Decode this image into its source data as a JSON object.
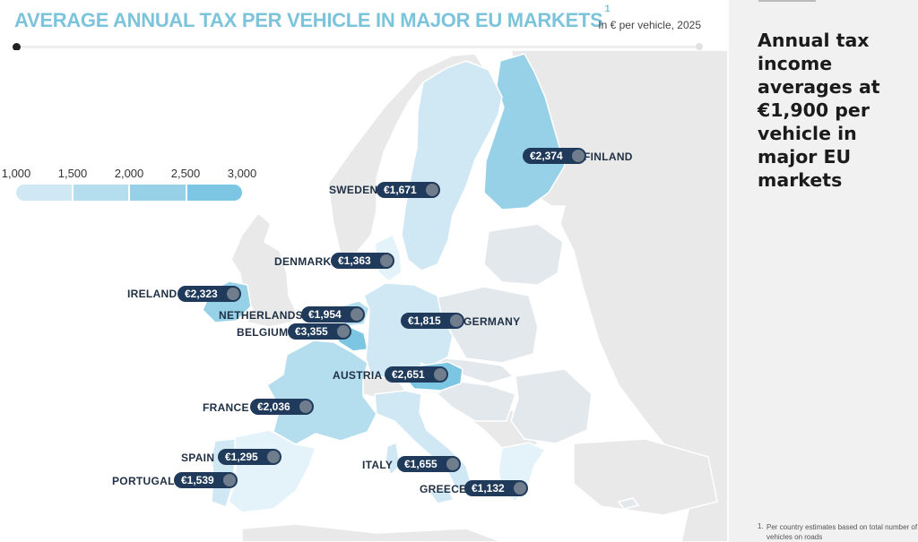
{
  "header": {
    "title": "AVERAGE ANNUAL TAX PER VEHICLE IN MAJOR EU MARKETS",
    "footnote_marker": "1",
    "unit": "In € per vehicle, 2025"
  },
  "legend": {
    "ticks": [
      "1,000",
      "1,500",
      "2,000",
      "2,500",
      "3,000"
    ],
    "colors": [
      "#e4f2f9",
      "#cfe8f3",
      "#b4ddee",
      "#97d1e8",
      "#7cc6e3"
    ]
  },
  "map_colors": {
    "sea": "#ffffff",
    "non_eu_land": "#e9e9e9",
    "other_eu_land": "#e3e8ec",
    "border": "#ffffff",
    "pill": "#1f3a5a",
    "label": "#1f2f44"
  },
  "countries": [
    {
      "name": "FINLAND",
      "value": "€2,374",
      "shade": 3
    },
    {
      "name": "SWEDEN",
      "value": "€1,671",
      "shade": 1
    },
    {
      "name": "DENMARK",
      "value": "€1,363",
      "shade": 0
    },
    {
      "name": "IRELAND",
      "value": "€2,323",
      "shade": 3
    },
    {
      "name": "NETHERLANDS",
      "value": "€1,954",
      "shade": 2
    },
    {
      "name": "BELGIUM",
      "value": "€3,355",
      "shade": 4
    },
    {
      "name": "GERMANY",
      "value": "€1,815",
      "shade": 1
    },
    {
      "name": "AUSTRIA",
      "value": "€2,651",
      "shade": 4
    },
    {
      "name": "FRANCE",
      "value": "€2,036",
      "shade": 2
    },
    {
      "name": "SPAIN",
      "value": "€1,295",
      "shade": 0
    },
    {
      "name": "PORTUGAL",
      "value": "€1,539",
      "shade": 1
    },
    {
      "name": "ITALY",
      "value": "€1,655",
      "shade": 1
    },
    {
      "name": "GREECE",
      "value": "€1,132",
      "shade": 0
    }
  ],
  "sidebar": {
    "headline": "Annual tax income averages at €1,900 per vehicle in major EU markets",
    "footnote_number": "1.",
    "footnote_text": "Per country estimates based on total number of vehicles on roads"
  }
}
